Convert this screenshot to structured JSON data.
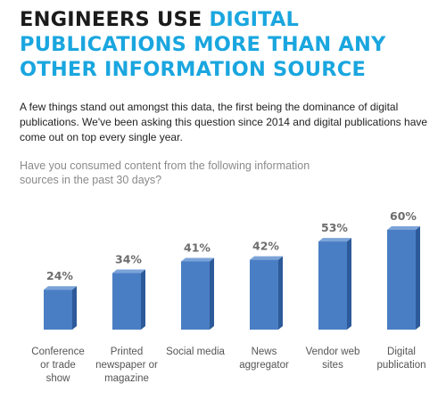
{
  "headline": {
    "line1_dark": "ENGINEERS USE ",
    "line1_accent": "DIGITAL",
    "line2_accent": "PUBLICATIONS MORE THAN ANY",
    "line3_accent": "OTHER INFORMATION SOURCE"
  },
  "intro": "A few things stand out amongst this data, the first being the dominance of digital publications. We've been asking this question since 2014 and digital publications have come out on top every single year.",
  "question": "Have you consumed content from the following information sources in the past 30 days?",
  "colors": {
    "accent": "#1aa6df",
    "bar_front": "#4a7ec4",
    "bar_side": "#2d5a9a",
    "bar_top": "#7aa3d8"
  },
  "chart_data": {
    "type": "bar",
    "title": "",
    "xlabel": "",
    "ylabel": "",
    "categories": [
      [
        "Conference",
        "or trade",
        "show"
      ],
      [
        "Printed",
        "newspaper or",
        "magazine"
      ],
      [
        "Social media"
      ],
      [
        "News",
        "aggregator"
      ],
      [
        "Vendor web",
        "sites"
      ],
      [
        "Digital",
        "publication"
      ]
    ],
    "values": [
      24,
      34,
      41,
      42,
      53,
      60
    ],
    "value_labels": [
      "24%",
      "34%",
      "41%",
      "42%",
      "53%",
      "60%"
    ],
    "ylim": [
      0,
      60
    ],
    "grid": false,
    "legend": "none"
  }
}
